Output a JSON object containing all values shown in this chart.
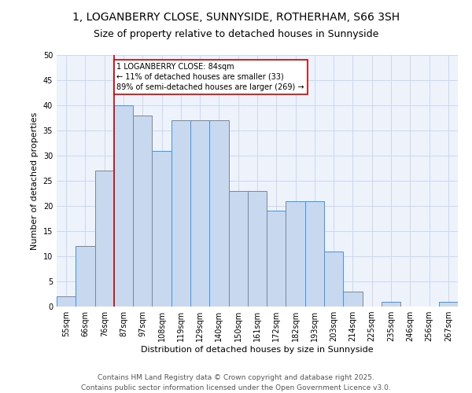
{
  "title_line1": "1, LOGANBERRY CLOSE, SUNNYSIDE, ROTHERHAM, S66 3SH",
  "title_line2": "Size of property relative to detached houses in Sunnyside",
  "xlabel": "Distribution of detached houses by size in Sunnyside",
  "ylabel": "Number of detached properties",
  "categories": [
    "55sqm",
    "66sqm",
    "76sqm",
    "87sqm",
    "97sqm",
    "108sqm",
    "119sqm",
    "129sqm",
    "140sqm",
    "150sqm",
    "161sqm",
    "172sqm",
    "182sqm",
    "193sqm",
    "203sqm",
    "214sqm",
    "225sqm",
    "235sqm",
    "246sqm",
    "256sqm",
    "267sqm"
  ],
  "values": [
    2,
    12,
    27,
    40,
    38,
    31,
    37,
    37,
    37,
    23,
    23,
    19,
    21,
    21,
    11,
    3,
    0,
    1,
    0,
    0,
    1
  ],
  "bar_color": "#c8d9ef",
  "bar_edge_color": "#5b8dc8",
  "vline_color": "#cc0000",
  "annotation_text": "1 LOGANBERRY CLOSE: 84sqm\n← 11% of detached houses are smaller (33)\n89% of semi-detached houses are larger (269) →",
  "annotation_box_color": "#cc0000",
  "ylim": [
    0,
    50
  ],
  "yticks": [
    0,
    5,
    10,
    15,
    20,
    25,
    30,
    35,
    40,
    45,
    50
  ],
  "grid_color": "#c8d4e8",
  "bg_color": "#eef2fa",
  "footer_text": "Contains HM Land Registry data © Crown copyright and database right 2025.\nContains public sector information licensed under the Open Government Licence v3.0.",
  "title_fontsize": 10,
  "subtitle_fontsize": 9,
  "axis_label_fontsize": 8,
  "tick_fontsize": 7,
  "annotation_fontsize": 7,
  "footer_fontsize": 6.5
}
